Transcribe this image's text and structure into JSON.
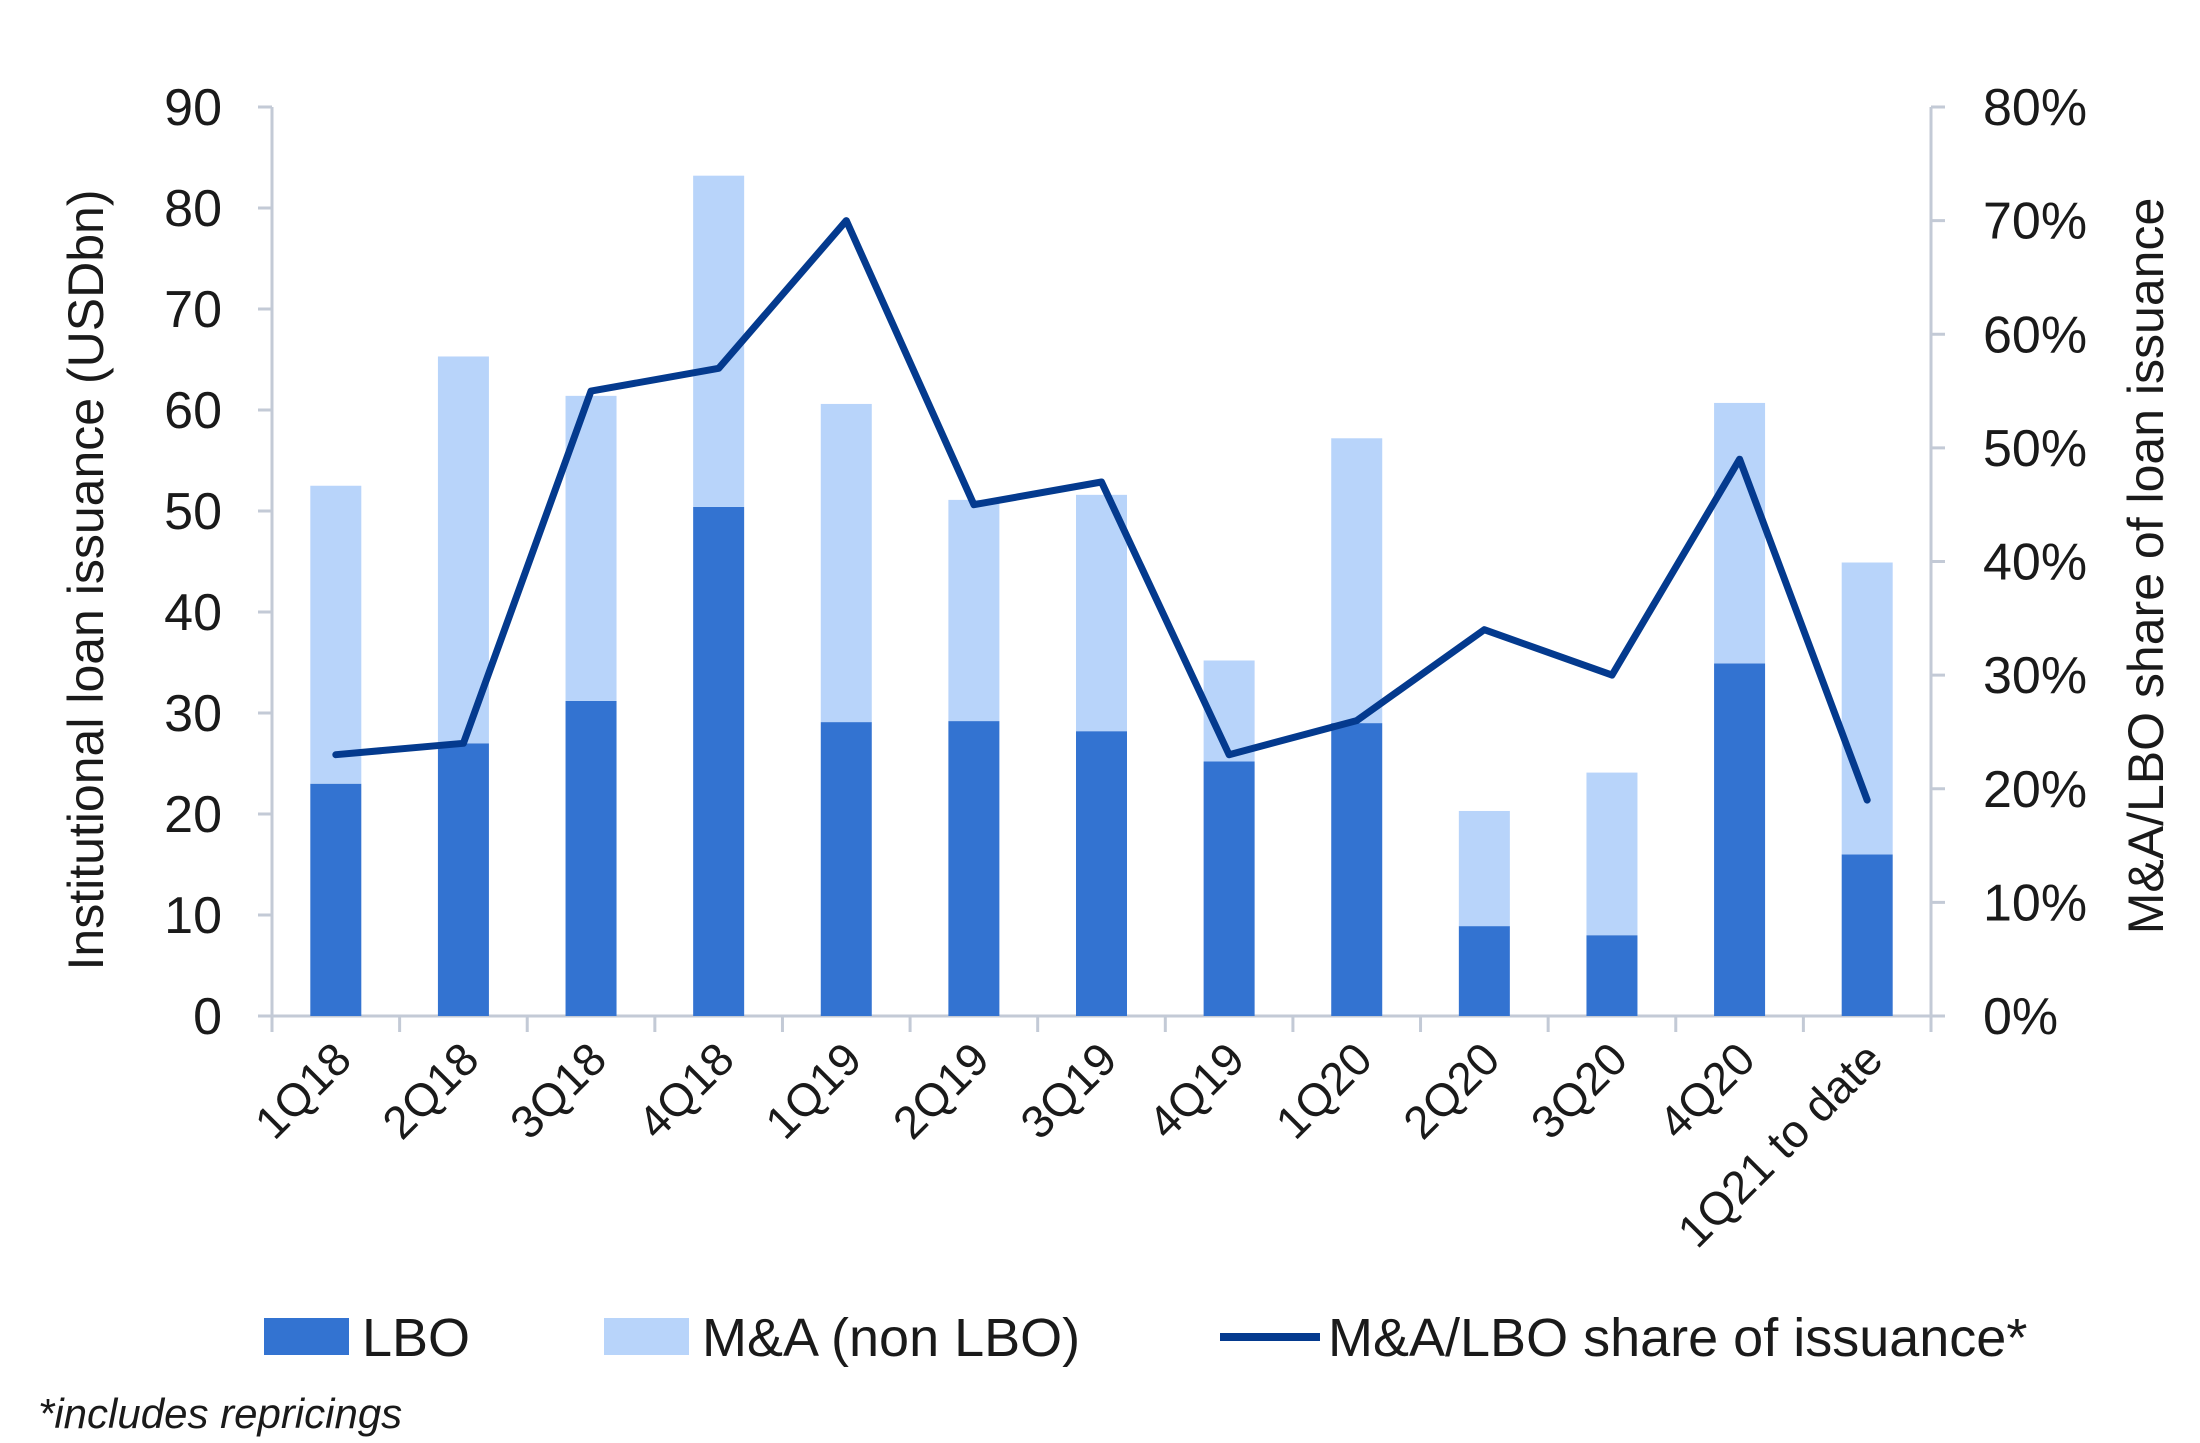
{
  "chart_data": {
    "type": "bar",
    "stacked": true,
    "categories": [
      "1Q18",
      "2Q18",
      "3Q18",
      "4Q18",
      "1Q19",
      "2Q19",
      "3Q19",
      "4Q19",
      "1Q20",
      "2Q20",
      "3Q20",
      "4Q20",
      "1Q21 to date"
    ],
    "series": [
      {
        "name": "LBO",
        "type": "bar",
        "axis": "left",
        "color": "#3373D1",
        "values": [
          23,
          27,
          31.2,
          50.4,
          29.1,
          29.2,
          28.2,
          25.2,
          29,
          8.9,
          8,
          34.9,
          16
        ]
      },
      {
        "name": "M&A (non LBO)",
        "type": "bar",
        "axis": "left",
        "color": "#B8D4FA",
        "values": [
          29.5,
          38.3,
          30.2,
          32.8,
          31.5,
          21.9,
          23.4,
          10,
          28.2,
          11.4,
          16.1,
          25.8,
          28.9
        ]
      },
      {
        "name": "M&A/LBO share of issuance*",
        "type": "line",
        "axis": "right",
        "color": "#043A8E",
        "values": [
          0.23,
          0.24,
          0.55,
          0.57,
          0.7,
          0.45,
          0.47,
          0.23,
          0.26,
          0.34,
          0.3,
          0.49,
          0.19
        ]
      }
    ],
    "ylabel": "Institutional loan issuance (USDbn)",
    "ylim": [
      0,
      90
    ],
    "yticks": [
      "0",
      "10",
      "20",
      "30",
      "40",
      "50",
      "60",
      "70",
      "80",
      "90"
    ],
    "y2label": "M&A/LBO share of loan issuance",
    "y2lim": [
      0,
      0.8
    ],
    "y2ticks": [
      "0%",
      "10%",
      "20%",
      "30%",
      "40%",
      "50%",
      "60%",
      "70%",
      "80%"
    ],
    "legend_position": "bottom",
    "footnote": "*includes repricings"
  }
}
